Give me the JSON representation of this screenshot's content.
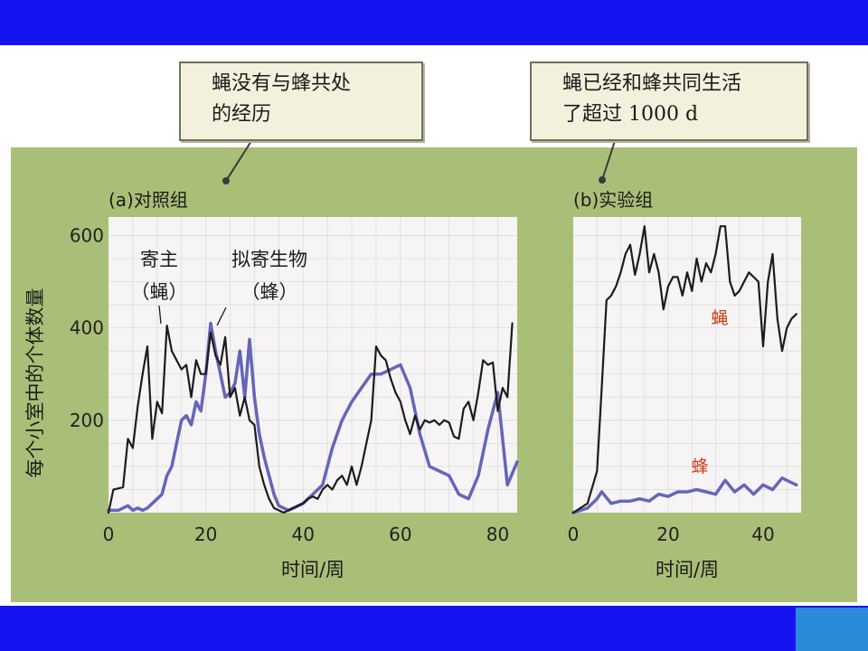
{
  "callouts": {
    "left": [
      "蝇没有与蜂共处",
      "的经历"
    ],
    "right": [
      "蝇已经和蜂共同生活",
      "了超过 1000 d"
    ]
  },
  "colors": {
    "header_bar": "#1414f0",
    "panel_background": "#a9bf78",
    "plot_background": "#f7f4f5",
    "fly_line": "#1c1c1c",
    "wasp_line": "#6466b8",
    "annotation_red": "#d23a14"
  },
  "chart_data": [
    {
      "type": "line",
      "panel_label": "(a)对照组",
      "ylabel": "每个小室中的个体数量",
      "xlabel": "时间/周",
      "xlim": [
        0,
        84
      ],
      "ylim": [
        0,
        640
      ],
      "xticks": [
        0,
        20,
        40,
        60,
        80
      ],
      "yticks": [
        200,
        400,
        600
      ],
      "grid": true,
      "annotations": [
        {
          "lines": [
            "寄主",
            "（蝇）"
          ],
          "points_to": [
            10,
            405
          ]
        },
        {
          "lines": [
            "拟寄生物",
            "（蜂）"
          ],
          "points_to": [
            21,
            410
          ]
        }
      ],
      "series": [
        {
          "name": "寄主（蝇）",
          "color": "#1c1c1c",
          "x": [
            0,
            1,
            3,
            4,
            5,
            6,
            7,
            8,
            9,
            10,
            11,
            12,
            13,
            14,
            15,
            16,
            17,
            18,
            19,
            20,
            21,
            22,
            23,
            24,
            25,
            26,
            27,
            28,
            29,
            30,
            31,
            32,
            33,
            34,
            35,
            36,
            37,
            38,
            39,
            40,
            41,
            42,
            43,
            44,
            45,
            46,
            47,
            48,
            49,
            50,
            51,
            52,
            53,
            54,
            55,
            56,
            57,
            58,
            59,
            60,
            61,
            62,
            63,
            64,
            65,
            66,
            67,
            68,
            69,
            70,
            71,
            72,
            73,
            74,
            75,
            76,
            77,
            78,
            79,
            80,
            81,
            82,
            83
          ],
          "y": [
            0,
            50,
            55,
            160,
            140,
            230,
            300,
            360,
            160,
            240,
            215,
            405,
            350,
            330,
            310,
            320,
            250,
            330,
            300,
            300,
            390,
            340,
            320,
            380,
            250,
            270,
            210,
            250,
            200,
            190,
            100,
            60,
            30,
            10,
            5,
            0,
            5,
            10,
            15,
            20,
            30,
            35,
            30,
            50,
            60,
            50,
            70,
            80,
            60,
            100,
            60,
            100,
            150,
            200,
            360,
            340,
            330,
            290,
            260,
            240,
            200,
            170,
            210,
            180,
            200,
            195,
            200,
            190,
            200,
            195,
            165,
            160,
            225,
            240,
            200,
            260,
            330,
            320,
            325,
            220,
            270,
            250,
            410
          ]
        },
        {
          "name": "拟寄生物（蜂）",
          "color": "#6466b8",
          "x": [
            0,
            2,
            4,
            5,
            6,
            7,
            8,
            9,
            10,
            11,
            12,
            13,
            14,
            15,
            16,
            17,
            18,
            19,
            20,
            21,
            22,
            23,
            24,
            25,
            26,
            27,
            28,
            29,
            30,
            31,
            32,
            33,
            34,
            35,
            36,
            37,
            38,
            40,
            42,
            44,
            46,
            48,
            50,
            52,
            54,
            56,
            58,
            60,
            62,
            64,
            66,
            68,
            70,
            72,
            74,
            76,
            78,
            80,
            82,
            84
          ],
          "y": [
            5,
            5,
            15,
            5,
            10,
            5,
            10,
            20,
            30,
            40,
            80,
            100,
            150,
            200,
            210,
            190,
            240,
            220,
            300,
            410,
            350,
            300,
            250,
            260,
            280,
            350,
            250,
            375,
            250,
            170,
            120,
            80,
            40,
            15,
            10,
            5,
            10,
            20,
            40,
            60,
            140,
            200,
            240,
            270,
            300,
            300,
            310,
            320,
            270,
            170,
            100,
            90,
            80,
            40,
            30,
            80,
            180,
            260,
            60,
            110
          ]
        }
      ]
    },
    {
      "type": "line",
      "panel_label": "(b)实验组",
      "xlabel": "时间/周",
      "xlim": [
        0,
        48
      ],
      "ylim": [
        0,
        640
      ],
      "xticks": [
        0,
        20,
        40
      ],
      "grid": true,
      "annotations": [
        {
          "lines": [
            "蝇"
          ],
          "points_to": [
            30,
            430
          ],
          "color": "#d23a14"
        },
        {
          "lines": [
            "蜂"
          ],
          "points_to": [
            29,
            100
          ],
          "color": "#d23a14"
        }
      ],
      "series": [
        {
          "name": "蝇",
          "color": "#1c1c1c",
          "x": [
            0,
            3,
            5,
            6,
            7,
            8,
            9,
            10,
            11,
            12,
            13,
            14,
            15,
            16,
            17,
            18,
            19,
            20,
            21,
            22,
            23,
            24,
            25,
            26,
            27,
            28,
            29,
            30,
            31,
            32,
            33,
            34,
            35,
            36,
            37,
            38,
            39,
            40,
            41,
            42,
            43,
            44,
            45,
            46,
            47
          ],
          "y": [
            0,
            20,
            90,
            270,
            460,
            470,
            490,
            520,
            560,
            580,
            515,
            560,
            620,
            520,
            560,
            520,
            440,
            490,
            510,
            510,
            470,
            520,
            480,
            550,
            500,
            540,
            520,
            560,
            620,
            620,
            500,
            470,
            480,
            500,
            520,
            510,
            500,
            360,
            500,
            560,
            420,
            350,
            400,
            420,
            430
          ]
        },
        {
          "name": "蜂",
          "color": "#6466b8",
          "x": [
            0,
            3,
            5,
            6,
            8,
            10,
            12,
            14,
            16,
            18,
            20,
            22,
            24,
            26,
            28,
            30,
            32,
            34,
            36,
            38,
            40,
            42,
            44,
            46,
            47
          ],
          "y": [
            0,
            10,
            30,
            45,
            20,
            25,
            25,
            30,
            25,
            40,
            35,
            45,
            45,
            50,
            45,
            40,
            70,
            45,
            60,
            40,
            60,
            50,
            75,
            65,
            60
          ]
        }
      ]
    }
  ]
}
